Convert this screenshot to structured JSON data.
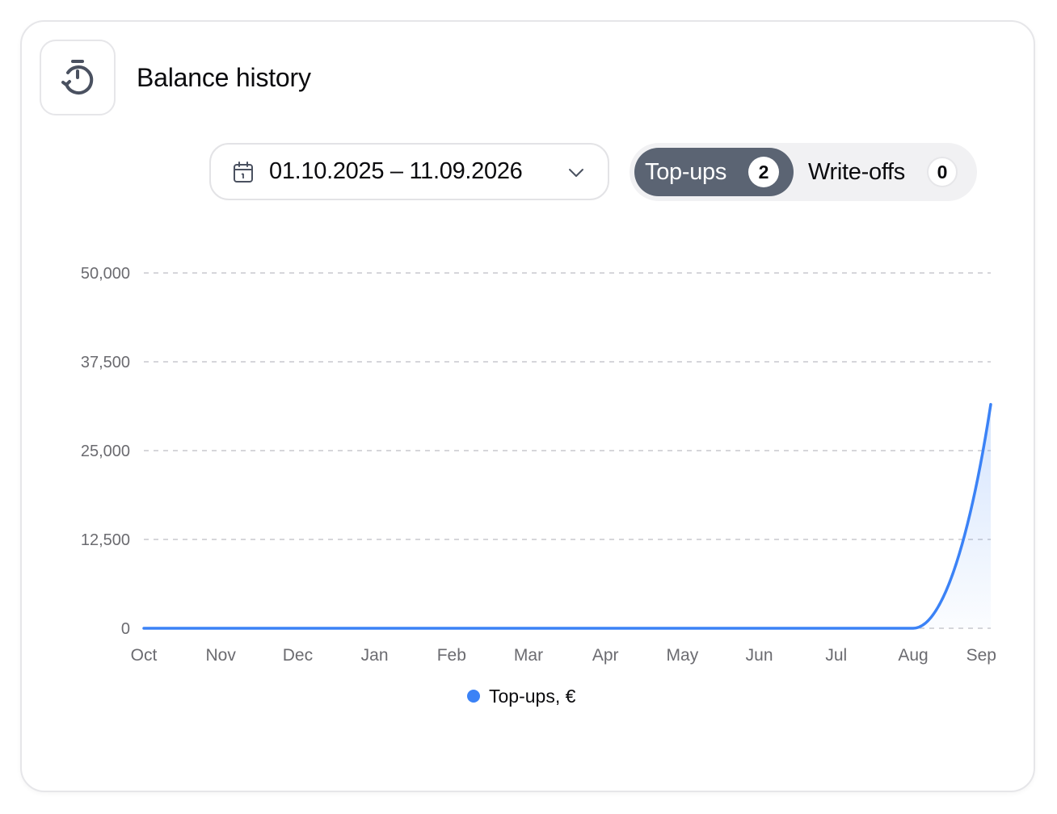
{
  "header": {
    "title": "Balance history",
    "icon": "timer-reset-icon"
  },
  "filters": {
    "date_range": "01.10.2025 – 11.09.2026",
    "calendar_icon": "calendar-icon",
    "dropdown_icon": "chevron-down-icon",
    "tabs": [
      {
        "label": "Top-ups",
        "count": "2",
        "active": true
      },
      {
        "label": "Write-offs",
        "count": "0",
        "active": false
      }
    ]
  },
  "colors": {
    "accent": "#3b82f6",
    "active_tab": "#5b6473",
    "grid": "#c9c9cd",
    "axis_text": "#6b6b70"
  },
  "chart_data": {
    "type": "area",
    "x": [
      "Oct",
      "Nov",
      "Dec",
      "Jan",
      "Feb",
      "Mar",
      "Apr",
      "May",
      "Jun",
      "Jul",
      "Aug",
      "Sep"
    ],
    "ylim": [
      0,
      50000
    ],
    "yticks": [
      "0",
      "12,500",
      "25,000",
      "37,500",
      "50,000"
    ],
    "ytick_values": [
      0,
      12500,
      25000,
      37500,
      50000
    ],
    "series": [
      {
        "name": "Top-ups, €",
        "color": "#3b82f6",
        "values": [
          0,
          0,
          0,
          0,
          0,
          0,
          0,
          0,
          0,
          0,
          0,
          31500
        ]
      }
    ],
    "grid": true,
    "legend_position": "bottom-center"
  }
}
